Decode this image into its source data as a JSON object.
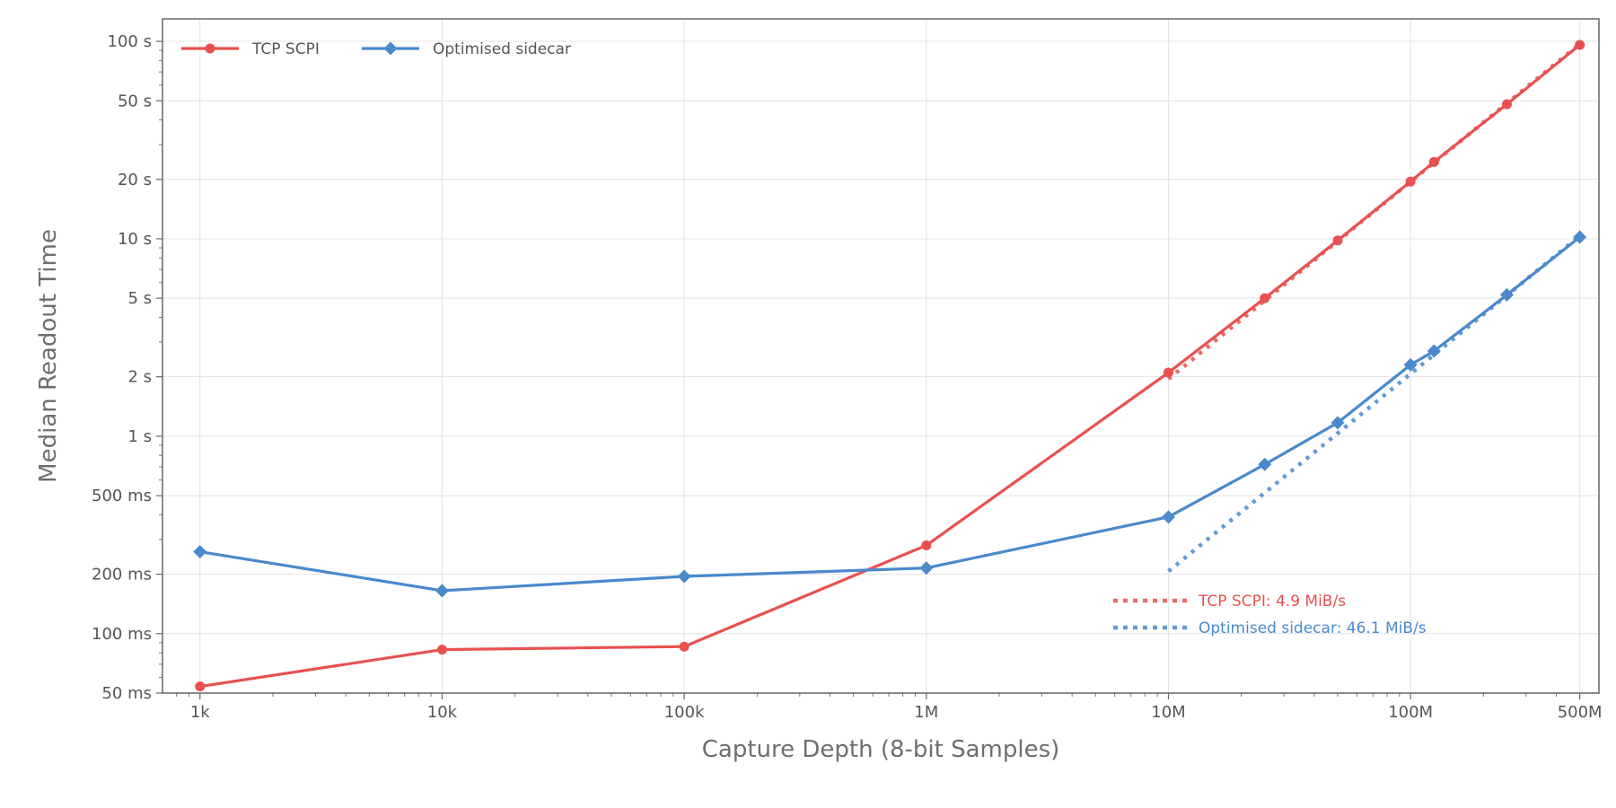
{
  "chart_data": {
    "type": "line",
    "title": "",
    "xlabel": "Capture Depth (8-bit Samples)",
    "ylabel": "Median Readout Time",
    "x_scale": "log",
    "y_scale": "log",
    "xlim": [
      700,
      600000000
    ],
    "ylim": [
      0.05,
      130
    ],
    "grid": true,
    "legend_position": "top-left",
    "x_ticks": [
      {
        "value": 1000,
        "label": "1k"
      },
      {
        "value": 10000,
        "label": "10k"
      },
      {
        "value": 100000,
        "label": "100k"
      },
      {
        "value": 1000000,
        "label": "1M"
      },
      {
        "value": 10000000,
        "label": "10M"
      },
      {
        "value": 100000000,
        "label": "100M"
      },
      {
        "value": 500000000,
        "label": "500M"
      }
    ],
    "y_ticks": [
      {
        "value": 0.05,
        "label": "50 ms"
      },
      {
        "value": 0.1,
        "label": "100 ms"
      },
      {
        "value": 0.2,
        "label": "200 ms"
      },
      {
        "value": 0.5,
        "label": "500 ms"
      },
      {
        "value": 1,
        "label": "1 s"
      },
      {
        "value": 2,
        "label": "2 s"
      },
      {
        "value": 5,
        "label": "5 s"
      },
      {
        "value": 10,
        "label": "10 s"
      },
      {
        "value": 20,
        "label": "20 s"
      },
      {
        "value": 50,
        "label": "50 s"
      },
      {
        "value": 100,
        "label": "100 s"
      }
    ],
    "series": [
      {
        "name": "TCP SCPI",
        "color": "#e8514f",
        "marker": "circle",
        "x": [
          1000,
          10000,
          100000,
          1000000,
          10000000,
          25000000,
          50000000,
          100000000,
          125000000,
          250000000,
          500000000
        ],
        "y": [
          0.054,
          0.083,
          0.086,
          0.28,
          2.1,
          5.0,
          9.8,
          19.5,
          24.5,
          48.0,
          96.0
        ]
      },
      {
        "name": "Optimised sidecar",
        "color": "#4a89cc",
        "marker": "diamond",
        "x": [
          1000,
          10000,
          100000,
          1000000,
          10000000,
          25000000,
          50000000,
          100000000,
          125000000,
          250000000,
          500000000
        ],
        "y": [
          0.26,
          0.165,
          0.195,
          0.215,
          0.39,
          0.72,
          1.17,
          2.3,
          2.7,
          5.2,
          10.2
        ]
      }
    ],
    "fit_lines": [
      {
        "label": "TCP SCPI: 4.9 MiB/s",
        "color": "#e8514f",
        "x": [
          10000000,
          500000000
        ],
        "y": [
          1.95,
          97.0
        ]
      },
      {
        "label": "Optimised sidecar: 46.1 MiB/s",
        "color": "#4a89cc",
        "x": [
          10000000,
          500000000
        ],
        "y": [
          0.207,
          10.34
        ]
      }
    ]
  }
}
